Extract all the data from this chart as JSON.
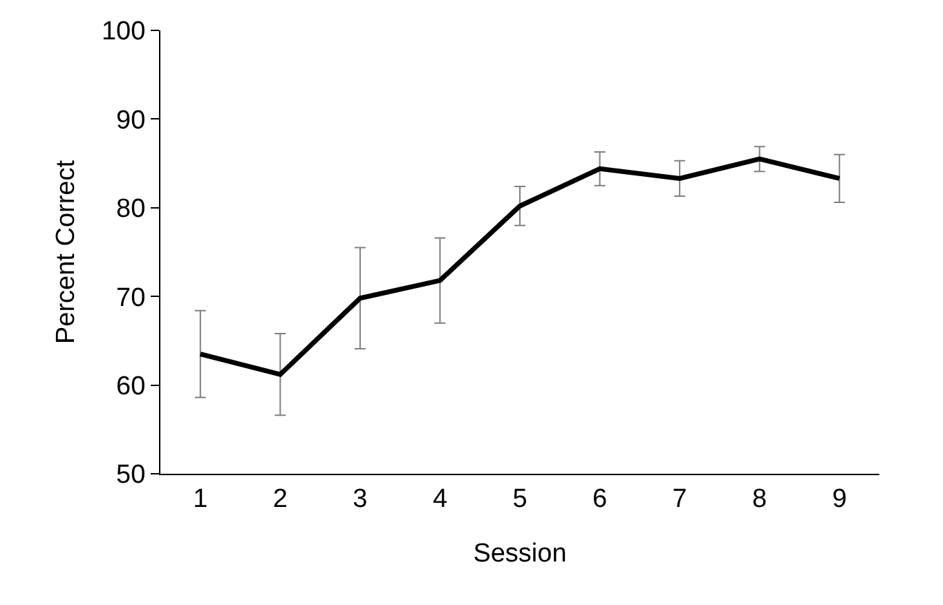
{
  "chart_data": {
    "type": "line",
    "xlabel": "Session",
    "ylabel": "Percent Correct",
    "categories": [
      "1",
      "2",
      "3",
      "4",
      "5",
      "6",
      "7",
      "8",
      "9"
    ],
    "series": [
      {
        "color": "#000000",
        "values": [
          63.5,
          61.2,
          69.8,
          71.8,
          80.2,
          84.4,
          83.3,
          85.5,
          83.3
        ],
        "errors": [
          4.9,
          4.6,
          5.7,
          4.8,
          2.2,
          1.9,
          2.0,
          1.4,
          2.7
        ]
      }
    ],
    "ylim": [
      50,
      100
    ],
    "yticks": [
      50,
      60,
      70,
      80,
      90,
      100
    ],
    "marker": "none",
    "line_style": "solid"
  }
}
